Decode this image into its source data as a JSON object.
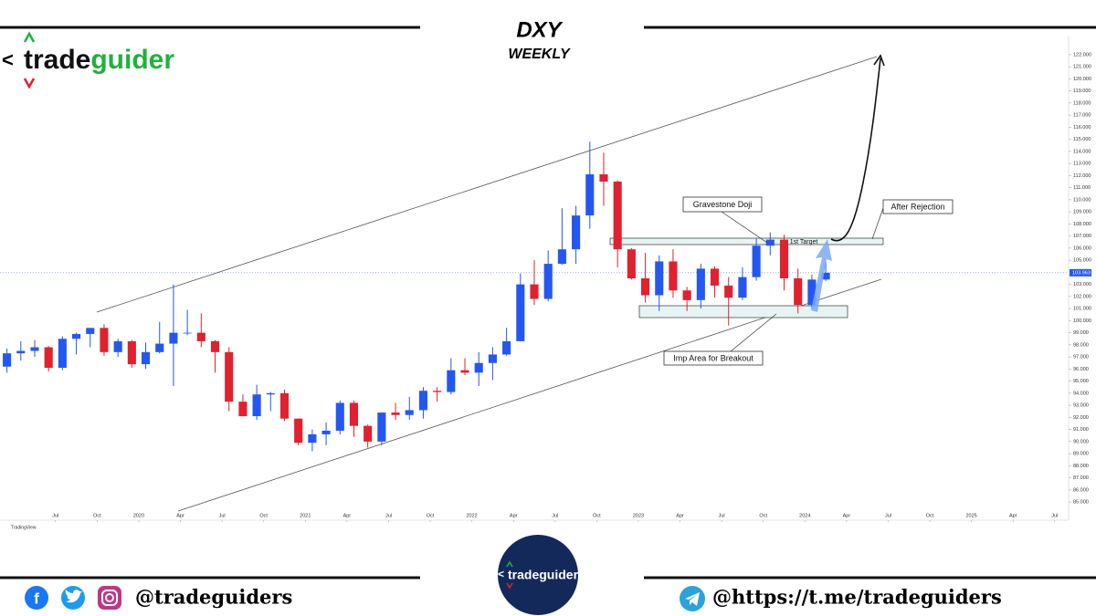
{
  "header": {
    "title": "DXY",
    "subtitle": "WEEKLY",
    "logo": {
      "prefix": "<",
      "brand_a": "trade",
      "brand_b": "guider"
    }
  },
  "chart_data": {
    "type": "candlestick",
    "watermark": "TradingView",
    "x": [
      "2019-03",
      "2019-04",
      "2019-05",
      "2019-06",
      "2019-07",
      "2019-08",
      "2019-09",
      "2019-10",
      "2019-11",
      "2019-12",
      "2020-01",
      "2020-02",
      "2020-03",
      "2020-04",
      "2020-05",
      "2020-06",
      "2020-07",
      "2020-08",
      "2020-09",
      "2020-10",
      "2020-11",
      "2020-12",
      "2021-01",
      "2021-02",
      "2021-03",
      "2021-04",
      "2021-05",
      "2021-06",
      "2021-07",
      "2021-08",
      "2021-09",
      "2021-10",
      "2021-11",
      "2021-12",
      "2022-01",
      "2022-02",
      "2022-03",
      "2022-04",
      "2022-05",
      "2022-06",
      "2022-07",
      "2022-08",
      "2022-09",
      "2022-10",
      "2022-11",
      "2022-12",
      "2023-01",
      "2023-02",
      "2023-03",
      "2023-04",
      "2023-05",
      "2023-06",
      "2023-07",
      "2023-08",
      "2023-09",
      "2023-10",
      "2023-11",
      "2023-12",
      "2024-01",
      "2024-02"
    ],
    "open": [
      96.2,
      97.3,
      97.5,
      97.8,
      96.1,
      98.5,
      98.9,
      99.4,
      97.4,
      98.3,
      96.4,
      97.4,
      98.1,
      99.0,
      99.0,
      98.3,
      97.4,
      93.3,
      92.1,
      93.9,
      94.0,
      91.9,
      89.9,
      90.6,
      90.9,
      93.2,
      91.3,
      90.0,
      92.4,
      92.2,
      92.6,
      94.2,
      94.1,
      95.9,
      95.7,
      96.5,
      97.2,
      98.3,
      103.0,
      101.8,
      104.7,
      105.9,
      108.7,
      112.1,
      111.5,
      105.9,
      103.5,
      102.1,
      104.9,
      102.5,
      101.7,
      104.3,
      102.9,
      101.9,
      103.6,
      106.2,
      106.7,
      103.5,
      101.3,
      103.4
    ],
    "high": [
      97.7,
      98.3,
      98.4,
      97.9,
      98.7,
      99.0,
      99.4,
      99.7,
      98.5,
      98.4,
      98.2,
      99.9,
      103.0,
      100.9,
      100.6,
      98.4,
      97.8,
      93.9,
      94.7,
      94.1,
      94.3,
      91.9,
      91.0,
      91.6,
      93.4,
      93.4,
      91.4,
      92.4,
      93.2,
      93.7,
      94.5,
      94.5,
      96.9,
      96.9,
      97.4,
      97.8,
      99.4,
      103.9,
      105.0,
      105.8,
      109.3,
      109.5,
      114.8,
      113.9,
      111.6,
      106.0,
      105.6,
      105.4,
      105.9,
      102.8,
      104.7,
      104.5,
      103.6,
      104.4,
      106.8,
      107.3,
      107.1,
      104.3,
      103.8,
      104.9
    ],
    "low": [
      95.7,
      96.7,
      97.0,
      95.8,
      95.9,
      97.2,
      97.8,
      97.1,
      97.0,
      96.1,
      96.0,
      97.3,
      94.6,
      98.8,
      97.8,
      95.7,
      92.5,
      92.1,
      91.8,
      92.5,
      91.7,
      89.7,
      89.2,
      89.7,
      90.6,
      90.4,
      89.5,
      89.7,
      91.8,
      91.8,
      91.9,
      93.3,
      93.9,
      95.5,
      94.6,
      95.1,
      97.1,
      98.3,
      101.3,
      101.6,
      104.6,
      104.7,
      107.6,
      109.5,
      104.4,
      103.4,
      101.5,
      100.8,
      101.9,
      100.8,
      101.0,
      101.9,
      99.6,
      101.7,
      103.3,
      105.4,
      102.5,
      100.6,
      101.0,
      103.3
    ],
    "close": [
      97.3,
      97.5,
      97.8,
      96.1,
      98.5,
      98.9,
      99.4,
      97.4,
      98.3,
      96.4,
      97.4,
      98.1,
      99.0,
      99.0,
      98.3,
      97.4,
      93.3,
      92.1,
      93.9,
      94.0,
      91.9,
      89.9,
      90.6,
      90.9,
      93.2,
      91.3,
      90.0,
      92.4,
      92.2,
      92.6,
      94.2,
      94.1,
      95.9,
      95.7,
      96.5,
      97.2,
      98.3,
      103.0,
      101.8,
      104.7,
      105.9,
      108.7,
      112.1,
      111.5,
      105.9,
      103.5,
      102.1,
      104.9,
      102.5,
      101.7,
      104.3,
      102.9,
      101.9,
      103.6,
      106.2,
      106.7,
      103.5,
      101.3,
      103.4,
      103.963
    ],
    "up_color": "#2457f2",
    "down_color": "#e0212e",
    "xlim": [
      "2019-03",
      "2025-08"
    ],
    "xticks": [
      {
        "value": "2019-07",
        "label": "Jul"
      },
      {
        "value": "2019-10",
        "label": "Oct"
      },
      {
        "value": "2020-01",
        "label": "2020"
      },
      {
        "value": "2020-04",
        "label": "Apr"
      },
      {
        "value": "2020-07",
        "label": "Jul"
      },
      {
        "value": "2020-10",
        "label": "Oct"
      },
      {
        "value": "2021-01",
        "label": "2021"
      },
      {
        "value": "2021-04",
        "label": "Apr"
      },
      {
        "value": "2021-07",
        "label": "Jul"
      },
      {
        "value": "2021-10",
        "label": "Oct"
      },
      {
        "value": "2022-01",
        "label": "2022"
      },
      {
        "value": "2022-04",
        "label": "Apr"
      },
      {
        "value": "2022-07",
        "label": "Jul"
      },
      {
        "value": "2022-10",
        "label": "Oct"
      },
      {
        "value": "2023-01",
        "label": "2023"
      },
      {
        "value": "2023-04",
        "label": "Apr"
      },
      {
        "value": "2023-07",
        "label": "Jul"
      },
      {
        "value": "2023-10",
        "label": "Oct"
      },
      {
        "value": "2024-01",
        "label": "2024"
      },
      {
        "value": "2024-04",
        "label": "Apr"
      },
      {
        "value": "2024-07",
        "label": "Jul"
      },
      {
        "value": "2024-10",
        "label": "Oct"
      },
      {
        "value": "2025-01",
        "label": "2025"
      },
      {
        "value": "2025-04",
        "label": "Apr"
      },
      {
        "value": "2025-07",
        "label": "Jul"
      }
    ],
    "ylim": [
      83.5,
      123.5
    ],
    "yticks": [
      {
        "value": 85,
        "label": "85.000"
      },
      {
        "value": 86,
        "label": "86.000"
      },
      {
        "value": 87,
        "label": "87.000"
      },
      {
        "value": 88,
        "label": "88.000"
      },
      {
        "value": 89,
        "label": "89.000"
      },
      {
        "value": 90,
        "label": "90.000"
      },
      {
        "value": 91,
        "label": "91.000"
      },
      {
        "value": 92,
        "label": "92.000"
      },
      {
        "value": 93,
        "label": "93.000"
      },
      {
        "value": 94,
        "label": "94.000"
      },
      {
        "value": 95,
        "label": "95.000"
      },
      {
        "value": 96,
        "label": "96.000"
      },
      {
        "value": 97,
        "label": "97.000"
      },
      {
        "value": 98,
        "label": "98.000"
      },
      {
        "value": 99,
        "label": "99.000"
      },
      {
        "value": 100,
        "label": "100.000"
      },
      {
        "value": 101,
        "label": "101.000"
      },
      {
        "value": 102,
        "label": "102.000"
      },
      {
        "value": 103,
        "label": "103.000"
      },
      {
        "value": 105,
        "label": "105.000"
      },
      {
        "value": 106,
        "label": "106.000"
      },
      {
        "value": 107,
        "label": "107.000"
      },
      {
        "value": 108,
        "label": "108.000"
      },
      {
        "value": 109,
        "label": "109.000"
      },
      {
        "value": 110,
        "label": "110.000"
      },
      {
        "value": 111,
        "label": "111.000"
      },
      {
        "value": 112,
        "label": "112.000"
      },
      {
        "value": 113,
        "label": "113.000"
      },
      {
        "value": 114,
        "label": "114.000"
      },
      {
        "value": 115,
        "label": "115.000"
      },
      {
        "value": 116,
        "label": "116.000"
      },
      {
        "value": 117,
        "label": "117.000"
      },
      {
        "value": 118,
        "label": "118.000"
      },
      {
        "value": 119,
        "label": "119.000"
      },
      {
        "value": 120,
        "label": "120.000"
      },
      {
        "value": 121,
        "label": "121.000"
      },
      {
        "value": 122,
        "label": "122.000"
      }
    ],
    "price_line": {
      "value": 103.963,
      "label": "103.963"
    },
    "annotations": {
      "doji": "Gravestone Doji",
      "rejection": "After Rejection",
      "target": "1st Target",
      "breakout": "Imp Area for Breakout"
    }
  },
  "footer": {
    "badge_prefix": "<",
    "badge": "tradeguider",
    "social_handle": "@tradeguiders",
    "telegram": "@https://t.me/tradeguiders"
  }
}
